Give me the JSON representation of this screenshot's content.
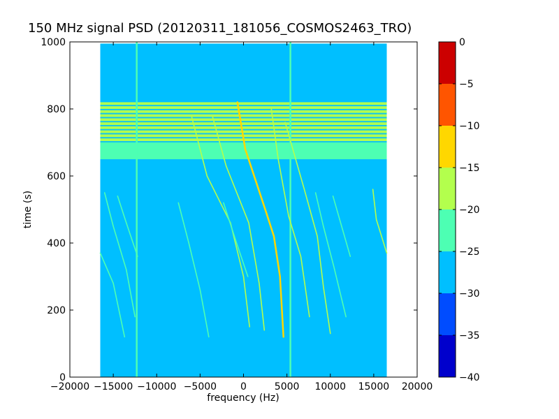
{
  "chart_data": {
    "type": "heatmap",
    "title": "150 MHz signal PSD (20120311_181056_COSMOS2463_TRO)",
    "xlabel": "frequency (Hz)",
    "ylabel": "time (s)",
    "xlim": [
      -20000,
      20000
    ],
    "ylim": [
      0,
      1000
    ],
    "x_ticks": [
      -20000,
      -15000,
      -10000,
      -5000,
      0,
      5000,
      10000,
      15000,
      20000
    ],
    "y_ticks": [
      0,
      200,
      400,
      600,
      800,
      1000
    ],
    "data_extent": {
      "x": [
        -16500,
        16500
      ],
      "y": [
        0,
        995
      ]
    },
    "background_level": -27,
    "bands": [
      {
        "y": [
          650,
          700
        ],
        "level": -22
      },
      {
        "y": [
          700,
          820
        ],
        "level": -20
      }
    ],
    "vertical_lines": [
      {
        "x": -12300,
        "y": [
          0,
          1000
        ],
        "level": -22
      },
      {
        "x": 5400,
        "y": [
          0,
          1000
        ],
        "level": -22
      }
    ],
    "traces": [
      {
        "points": [
          [
            -700,
            820
          ],
          [
            200,
            680
          ],
          [
            2500,
            500
          ],
          [
            3500,
            420
          ],
          [
            4200,
            300
          ],
          [
            4600,
            120
          ]
        ],
        "level": -15
      },
      {
        "points": [
          [
            4800,
            760
          ],
          [
            7000,
            560
          ],
          [
            8500,
            420
          ],
          [
            9200,
            270
          ],
          [
            10000,
            130
          ]
        ],
        "level": -20
      },
      {
        "points": [
          [
            -6000,
            780
          ],
          [
            -4200,
            600
          ],
          [
            -1500,
            460
          ],
          [
            0,
            300
          ],
          [
            700,
            150
          ]
        ],
        "level": -20
      },
      {
        "points": [
          [
            -3600,
            780
          ],
          [
            -2000,
            630
          ],
          [
            600,
            460
          ],
          [
            1800,
            280
          ],
          [
            2400,
            140
          ]
        ],
        "level": -20
      },
      {
        "points": [
          [
            3200,
            800
          ],
          [
            4000,
            650
          ],
          [
            5200,
            480
          ],
          [
            6600,
            360
          ],
          [
            7600,
            180
          ]
        ],
        "level": -20
      },
      {
        "points": [
          [
            14900,
            560
          ],
          [
            15300,
            470
          ],
          [
            16500,
            370
          ]
        ],
        "level": -20
      },
      {
        "points": [
          [
            -16500,
            370
          ],
          [
            -15000,
            280
          ],
          [
            -13700,
            120
          ]
        ],
        "level": -22
      },
      {
        "points": [
          [
            -16000,
            550
          ],
          [
            -15000,
            450
          ],
          [
            -13500,
            320
          ],
          [
            -12500,
            180
          ]
        ],
        "level": -23
      },
      {
        "points": [
          [
            -14500,
            540
          ],
          [
            -13500,
            460
          ],
          [
            -12200,
            360
          ]
        ],
        "level": -23
      },
      {
        "points": [
          [
            -7500,
            520
          ],
          [
            -6300,
            400
          ],
          [
            -5000,
            260
          ],
          [
            -4000,
            120
          ]
        ],
        "level": -23
      },
      {
        "points": [
          [
            -2300,
            520
          ],
          [
            -800,
            400
          ],
          [
            500,
            300
          ]
        ],
        "level": -23
      },
      {
        "points": [
          [
            8300,
            550
          ],
          [
            9200,
            450
          ],
          [
            10400,
            330
          ],
          [
            11800,
            180
          ]
        ],
        "level": -23
      },
      {
        "points": [
          [
            10300,
            540
          ],
          [
            11300,
            450
          ],
          [
            12300,
            360
          ]
        ],
        "level": -23
      }
    ],
    "colorbar": {
      "range": [
        -40,
        0
      ],
      "ticks": [
        0,
        -5,
        -10,
        -15,
        -20,
        -25,
        -30,
        -35,
        -40
      ],
      "colors": [
        "#0000cc",
        "#004cff",
        "#00bfff",
        "#4dffb3",
        "#b3ff4d",
        "#ffd700",
        "#ff5500",
        "#cc0000"
      ]
    }
  }
}
